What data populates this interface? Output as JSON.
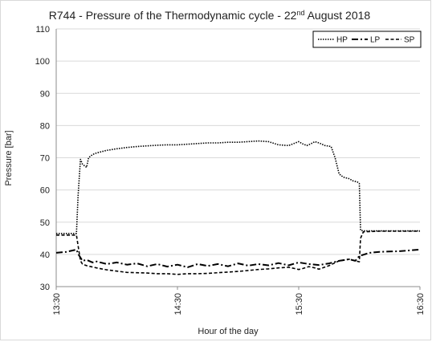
{
  "chart_data": {
    "type": "line",
    "title": "R744 - Pressure of the Thermodynamic cycle - 22",
    "title_superscript": "nd",
    "title_suffix": " August 2018",
    "xlabel": "Hour of the day",
    "ylabel": "Pressure [bar]",
    "xlim": [
      0,
      180
    ],
    "x_tick_values": [
      0,
      60,
      120,
      180
    ],
    "x_tick_labels": [
      "13:30",
      "14:30",
      "15:30",
      "16:30"
    ],
    "ylim": [
      30,
      110
    ],
    "y_ticks": [
      30,
      40,
      50,
      60,
      70,
      80,
      90,
      100,
      110
    ],
    "grid": "horizontal",
    "legend_position": "top-right",
    "series": [
      {
        "name": "HP",
        "style": "dotted",
        "x": [
          0,
          10,
          10.8,
          12,
          13,
          15,
          16,
          18,
          20,
          25,
          30,
          35,
          40,
          45,
          50,
          55,
          60,
          65,
          70,
          75,
          80,
          85,
          90,
          95,
          100,
          105,
          110,
          115,
          118,
          120,
          122,
          124,
          126,
          128,
          130,
          133,
          136,
          138,
          140,
          142,
          145,
          147,
          149,
          150,
          150.6,
          152,
          160,
          170,
          180
        ],
        "y": [
          46.5,
          46.5,
          58,
          69.5,
          68,
          67,
          70,
          71,
          71.5,
          72.3,
          72.8,
          73.2,
          73.5,
          73.7,
          73.9,
          74,
          74,
          74.2,
          74.4,
          74.6,
          74.6,
          74.8,
          74.8,
          75,
          75.2,
          75,
          74,
          73.8,
          74.5,
          75,
          74.3,
          73.8,
          74.3,
          75,
          74.6,
          73.8,
          73.5,
          70,
          65,
          64,
          63.5,
          62.8,
          62.5,
          62,
          47.5,
          47.3,
          47.3,
          47.3,
          47.3
        ]
      },
      {
        "name": "LP",
        "style": "dash-dot",
        "x": [
          0,
          5,
          10,
          11,
          12,
          13,
          15,
          18,
          20,
          25,
          30,
          35,
          40,
          45,
          50,
          55,
          60,
          65,
          70,
          75,
          80,
          85,
          90,
          95,
          100,
          105,
          110,
          115,
          120,
          125,
          130,
          135,
          140,
          145,
          148,
          150,
          155,
          160,
          170,
          180
        ],
        "y": [
          40.5,
          40.8,
          41.5,
          40,
          39,
          38,
          38.3,
          37.5,
          37.8,
          37,
          37.5,
          36.8,
          37.2,
          36.3,
          37,
          36.2,
          36.8,
          36,
          37,
          36.4,
          37,
          36.3,
          37.2,
          36.5,
          37,
          36.6,
          37.3,
          36.6,
          37.5,
          37,
          36.7,
          37.2,
          38,
          38.5,
          38,
          39.5,
          40.5,
          40.8,
          41,
          41.5
        ]
      },
      {
        "name": "SP",
        "style": "dashed",
        "x": [
          0,
          10,
          11,
          12,
          13,
          15,
          20,
          25,
          30,
          35,
          40,
          45,
          50,
          55,
          60,
          65,
          70,
          75,
          80,
          85,
          90,
          95,
          100,
          105,
          110,
          115,
          118,
          120,
          122,
          125,
          128,
          130,
          135,
          140,
          145,
          148,
          150,
          150.6,
          152,
          160,
          170,
          180
        ],
        "y": [
          46,
          46,
          42,
          38,
          37,
          36.5,
          35.8,
          35.2,
          34.8,
          34.4,
          34.3,
          34.2,
          34,
          34,
          33.8,
          34,
          34,
          34.1,
          34.3,
          34.5,
          34.7,
          35,
          35.3,
          35.5,
          35.8,
          36,
          35.6,
          35.3,
          35.6,
          36.2,
          35.8,
          35.4,
          36.5,
          38,
          38.5,
          38,
          37.7,
          45,
          47,
          47.2,
          47.2,
          47.2
        ]
      }
    ]
  }
}
